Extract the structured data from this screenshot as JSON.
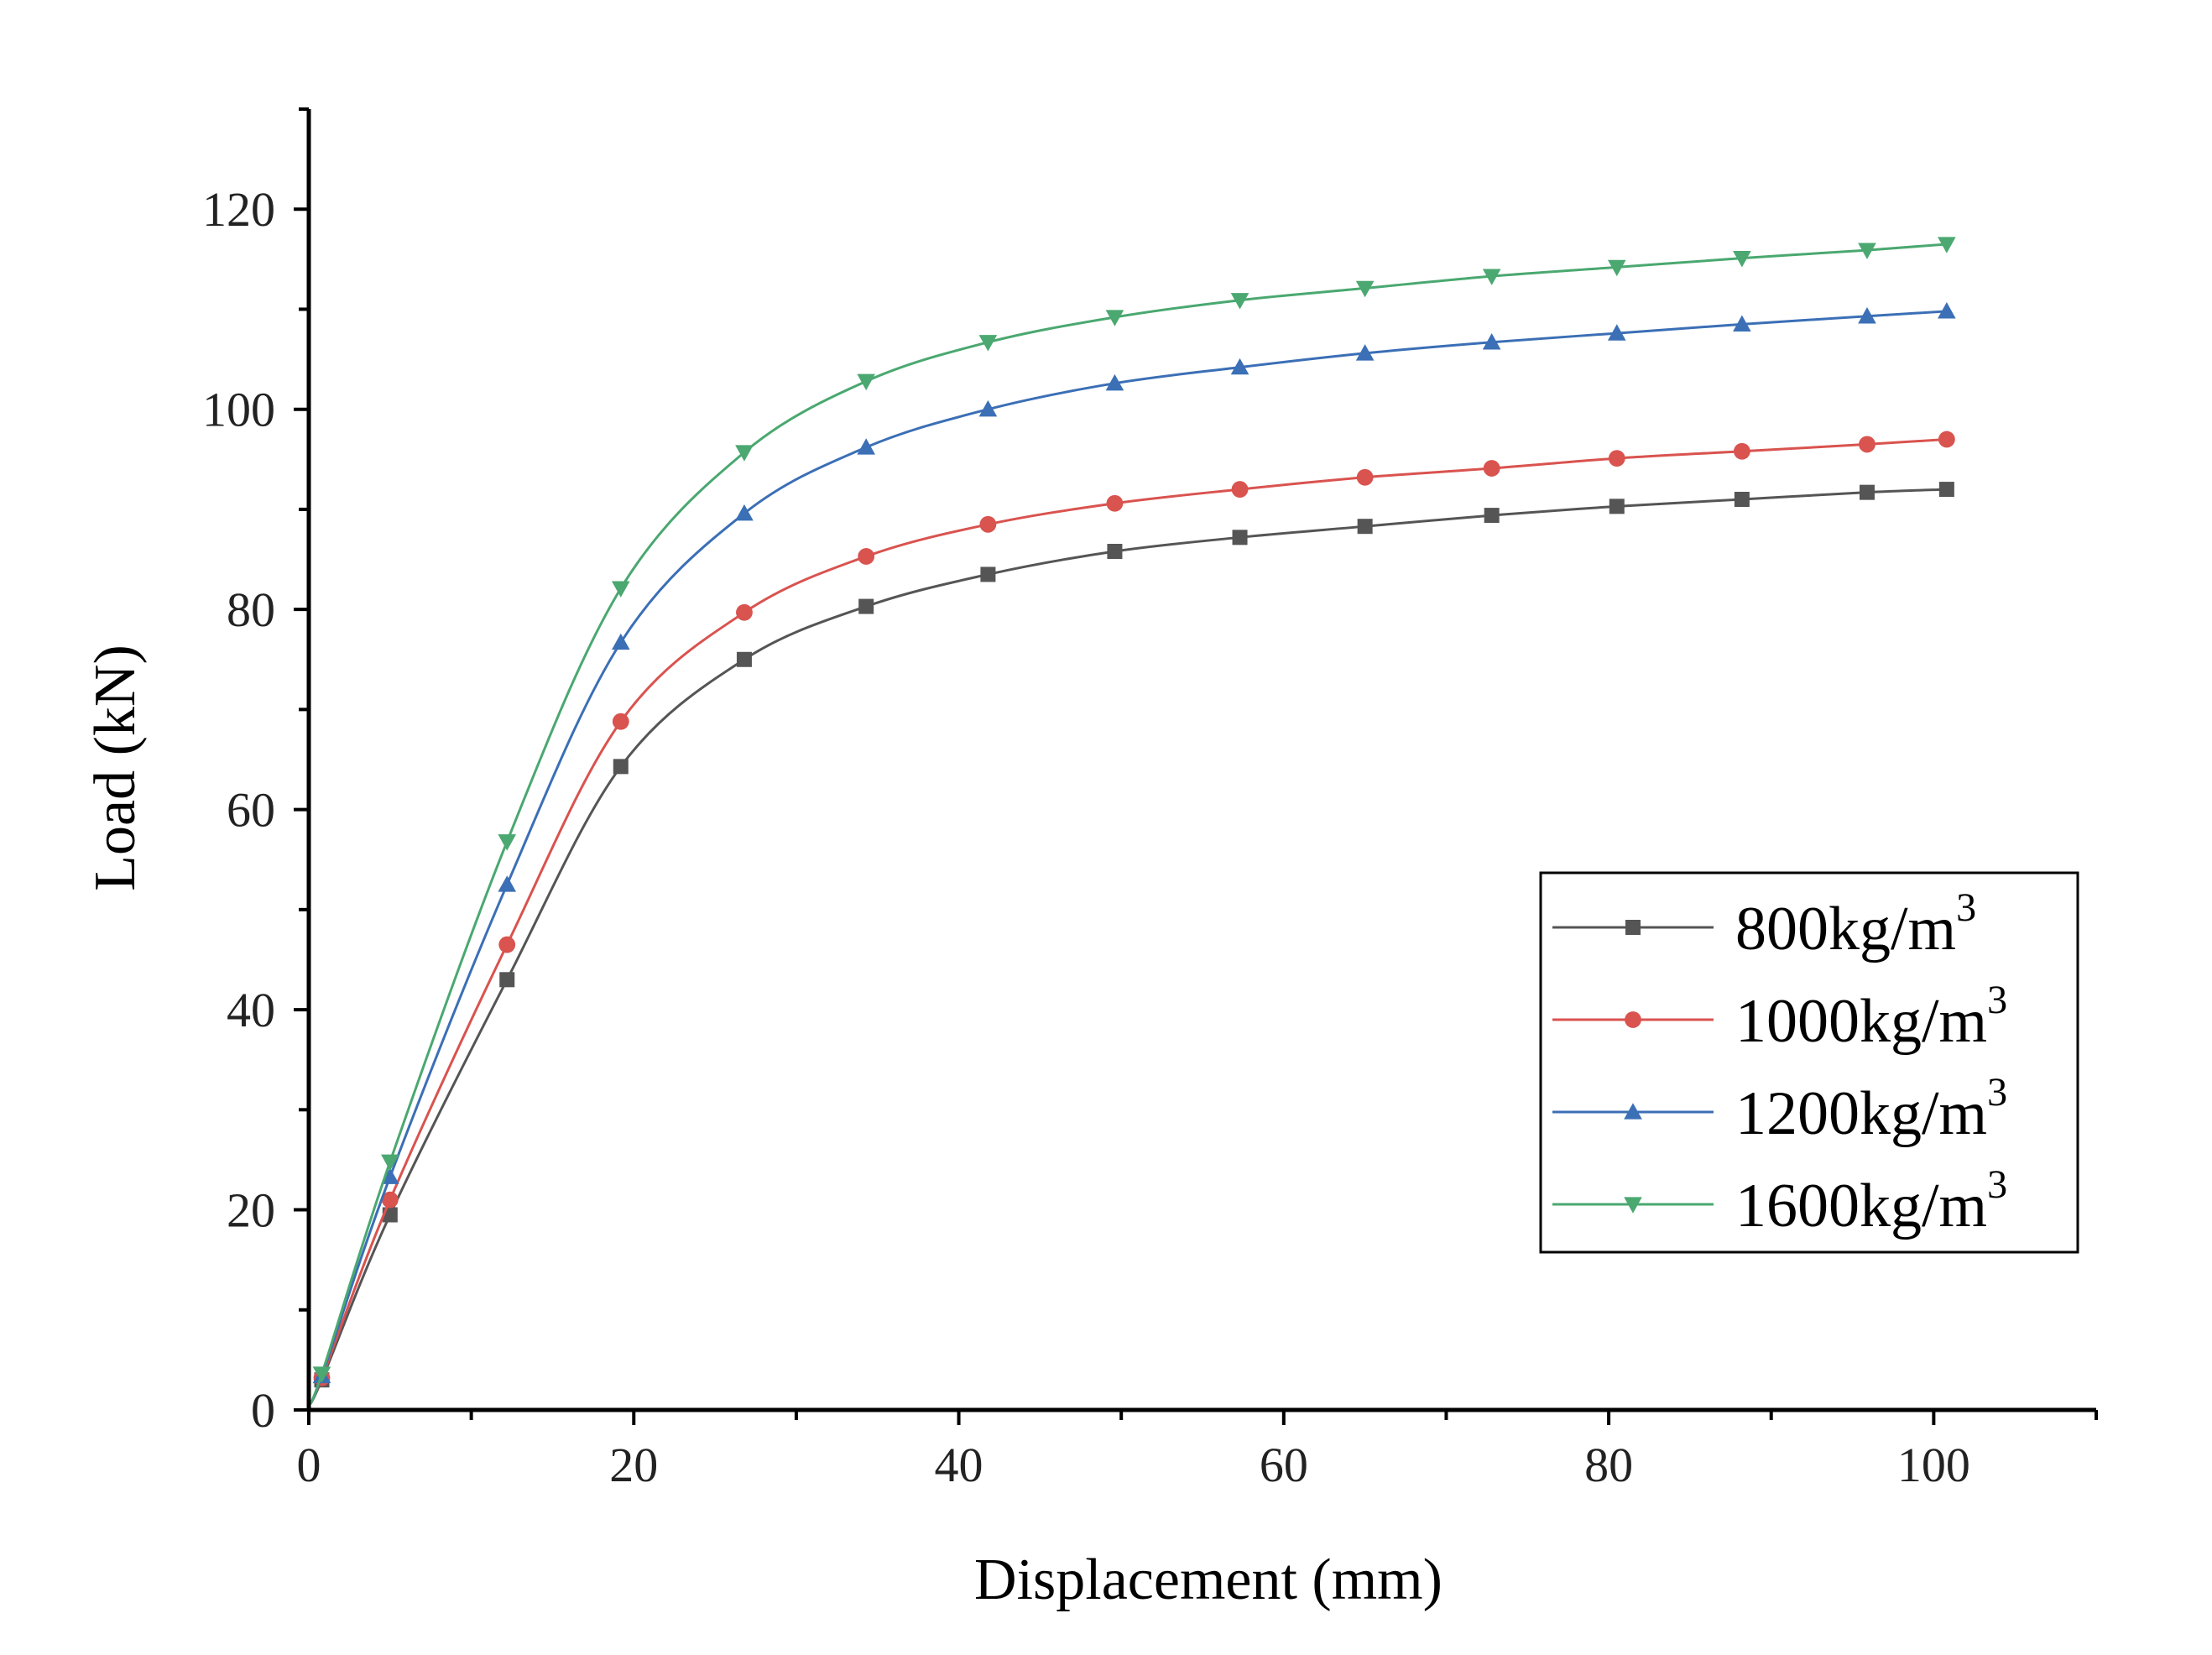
{
  "chart_data": {
    "type": "line",
    "title": "",
    "xlabel": "Displacement (mm)",
    "ylabel": "Load (kN)",
    "xlim": [
      0,
      110
    ],
    "ylim": [
      0,
      130
    ],
    "x_ticks": [
      0,
      20,
      40,
      60,
      80,
      100
    ],
    "y_ticks": [
      0,
      20,
      40,
      60,
      80,
      100,
      120
    ],
    "x_tick_labels": [
      "0",
      "20",
      "40",
      "60",
      "80",
      "100"
    ],
    "y_tick_labels": [
      "0",
      "20",
      "40",
      "60",
      "80",
      "100",
      "120"
    ],
    "legend_position": "bottom-right",
    "grid": false,
    "x": [
      0,
      0.8,
      5,
      12.2,
      19.2,
      26.8,
      34.3,
      41.8,
      49.6,
      57.3,
      65,
      72.8,
      80.5,
      88.2,
      95.9,
      100.8
    ],
    "series": [
      {
        "name": "800kg/m",
        "sup": "3",
        "color": "#555555",
        "marker": "square",
        "values": [
          0.5,
          3,
          19.5,
          43,
          64.3,
          75,
          80.3,
          83.5,
          85.8,
          87.2,
          88.3,
          89.4,
          90.3,
          91,
          91.7,
          92
        ]
      },
      {
        "name": "1000kg/m",
        "sup": "3",
        "color": "#d9534f",
        "marker": "circle",
        "values": [
          0.5,
          3.2,
          21,
          46.5,
          68.8,
          79.7,
          85.3,
          88.5,
          90.6,
          92,
          93.2,
          94.1,
          95.1,
          95.8,
          96.5,
          97
        ]
      },
      {
        "name": "1200kg/m",
        "sup": "3",
        "color": "#3b6fb6",
        "marker": "triangle-up",
        "values": [
          0.5,
          3.4,
          23.3,
          52.5,
          76.7,
          89.6,
          96.2,
          100,
          102.6,
          104.2,
          105.6,
          106.7,
          107.6,
          108.5,
          109.3,
          109.8
        ]
      },
      {
        "name": "1600kg/m",
        "sup": "3",
        "color": "#4aa870",
        "marker": "triangle-down",
        "values": [
          0.5,
          3.6,
          24.8,
          56.8,
          82.1,
          95.7,
          102.8,
          106.7,
          109.2,
          110.9,
          112.1,
          113.3,
          114.2,
          115.1,
          115.9,
          116.5
        ]
      }
    ]
  }
}
